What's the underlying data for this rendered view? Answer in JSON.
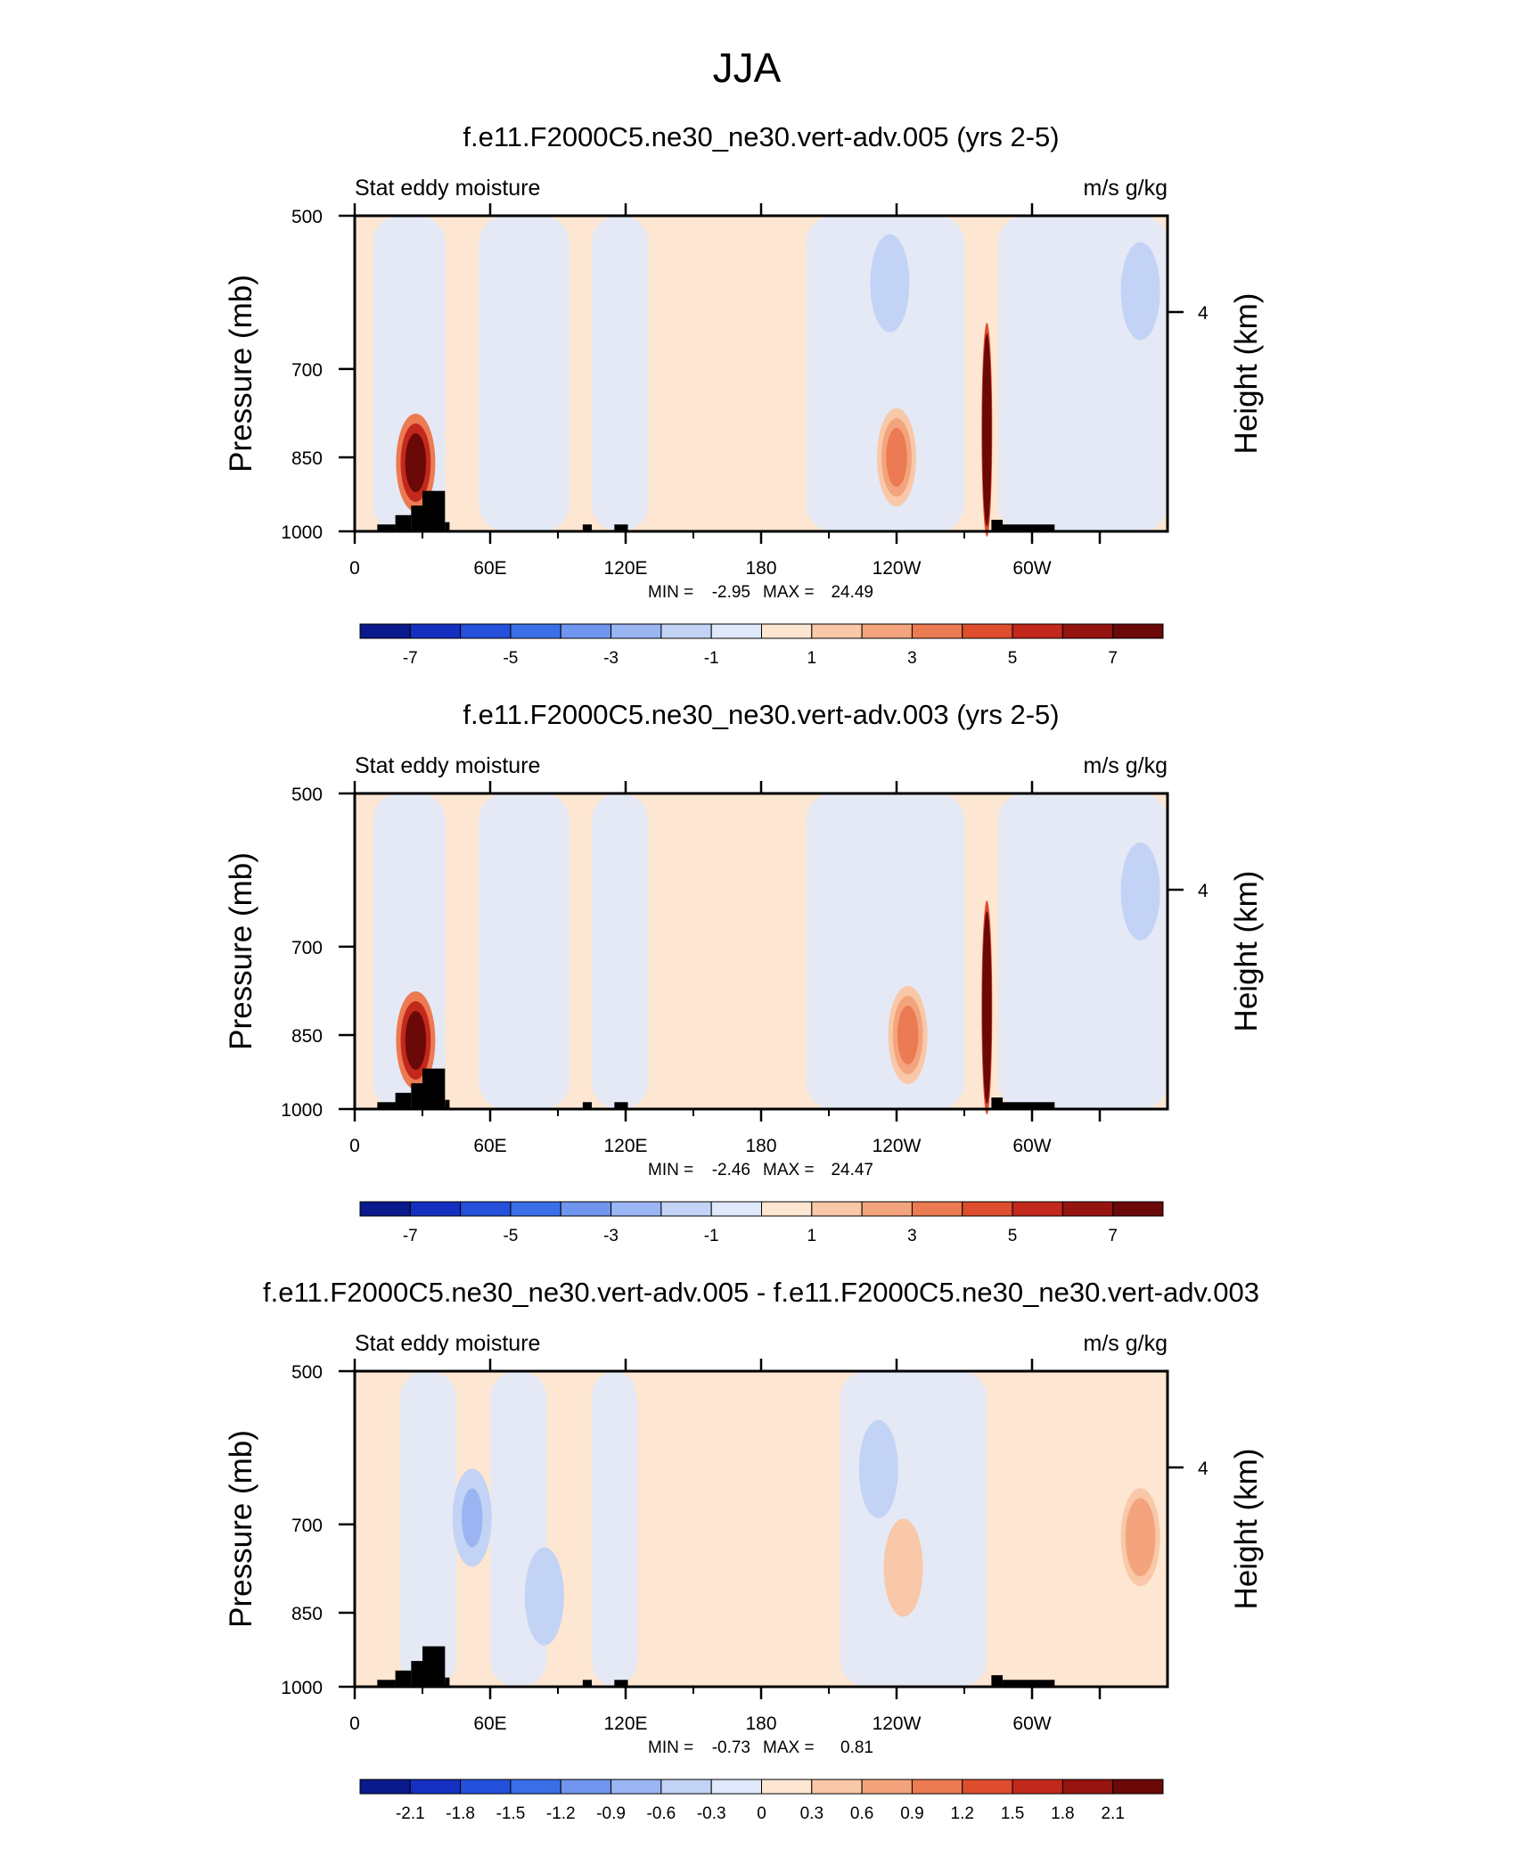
{
  "figure_title": "JJA",
  "colors": {
    "diverging": [
      "#0a1a8c",
      "#1530c0",
      "#2450dc",
      "#3a6fe8",
      "#6f95ee",
      "#9ab5f2",
      "#c3d3f6",
      "#dfe9fb",
      "#fde6d2",
      "#f8c8a8",
      "#f3a47c",
      "#ec7a52",
      "#de4d2e",
      "#c2281c",
      "#951410",
      "#6b0808"
    ],
    "frame": "#000000",
    "terrain": "#000000"
  },
  "chart_data": [
    {
      "type": "heatmap",
      "title": "f.e11.F2000C5.ne30_ne30.vert-adv.005 (yrs 2-5)",
      "left_label": "Stat eddy moisture",
      "right_label": "m/s g/kg",
      "ylabel": "Pressure (mb)",
      "y2label": "Height (km)",
      "y_ticks": [
        "500",
        "700",
        "850",
        "1000"
      ],
      "y_tick_values": [
        500,
        700,
        850,
        1000
      ],
      "y2_ticks": [
        "4"
      ],
      "x_ticks": [
        "0",
        "60E",
        "120E",
        "180",
        "120W",
        "60W"
      ],
      "x_tick_values": [
        0,
        60,
        120,
        180,
        240,
        300
      ],
      "xlim": [
        0,
        360
      ],
      "ylim": [
        1000,
        500
      ],
      "min_label": "MIN =",
      "min_value": "-2.95",
      "max_label": "MAX =",
      "max_value": "24.49",
      "colorbar_labels": [
        "-7",
        "-5",
        "-3",
        "-1",
        "1",
        "3",
        "5",
        "7"
      ],
      "features": [
        {
          "lon": 27,
          "p": 860,
          "value": 7
        },
        {
          "lon": 280,
          "p": 800,
          "value": 24
        },
        {
          "lon": 240,
          "p": 850,
          "value": 3
        },
        {
          "lon": 237,
          "p": 580,
          "value": -2
        },
        {
          "lon": 348,
          "p": 590,
          "value": -2
        }
      ]
    },
    {
      "type": "heatmap",
      "title": "f.e11.F2000C5.ne30_ne30.vert-adv.003 (yrs 2-5)",
      "left_label": "Stat eddy moisture",
      "right_label": "m/s g/kg",
      "ylabel": "Pressure (mb)",
      "y2label": "Height (km)",
      "y_ticks": [
        "500",
        "700",
        "850",
        "1000"
      ],
      "y_tick_values": [
        500,
        700,
        850,
        1000
      ],
      "y2_ticks": [
        "4"
      ],
      "x_ticks": [
        "0",
        "60E",
        "120E",
        "180",
        "120W",
        "60W"
      ],
      "x_tick_values": [
        0,
        60,
        120,
        180,
        240,
        300
      ],
      "xlim": [
        0,
        360
      ],
      "ylim": [
        1000,
        500
      ],
      "min_label": "MIN =",
      "min_value": "-2.46",
      "max_label": "MAX =",
      "max_value": "24.47",
      "colorbar_labels": [
        "-7",
        "-5",
        "-3",
        "-1",
        "1",
        "3",
        "5",
        "7"
      ],
      "features": [
        {
          "lon": 27,
          "p": 860,
          "value": 7
        },
        {
          "lon": 280,
          "p": 800,
          "value": 24
        },
        {
          "lon": 245,
          "p": 850,
          "value": 3
        },
        {
          "lon": 348,
          "p": 620,
          "value": -2
        }
      ]
    },
    {
      "type": "heatmap",
      "title": "f.e11.F2000C5.ne30_ne30.vert-adv.005 - f.e11.F2000C5.ne30_ne30.vert-adv.003",
      "left_label": "Stat eddy moisture",
      "right_label": "m/s g/kg",
      "ylabel": "Pressure (mb)",
      "y2label": "Height (km)",
      "y_ticks": [
        "500",
        "700",
        "850",
        "1000"
      ],
      "y_tick_values": [
        500,
        700,
        850,
        1000
      ],
      "y2_ticks": [
        "4"
      ],
      "x_ticks": [
        "0",
        "60E",
        "120E",
        "180",
        "120W",
        "60W"
      ],
      "x_tick_values": [
        0,
        60,
        120,
        180,
        240,
        300
      ],
      "xlim": [
        0,
        360
      ],
      "ylim": [
        1000,
        500
      ],
      "min_label": "MIN =",
      "min_value": "-0.73",
      "max_label": "MAX =",
      "max_value": "0.81",
      "colorbar_labels": [
        "-2.1",
        "-1.8",
        "-1.5",
        "-1.2",
        "-0.9",
        "-0.6",
        "-0.3",
        "0",
        "0.3",
        "0.6",
        "0.9",
        "1.2",
        "1.5",
        "1.8",
        "2.1"
      ],
      "features": [
        {
          "lon": 52,
          "p": 690,
          "value": -0.7
        },
        {
          "lon": 84,
          "p": 820,
          "value": -0.5
        },
        {
          "lon": 348,
          "p": 720,
          "value": 0.8
        },
        {
          "lon": 243,
          "p": 770,
          "value": 0.5
        },
        {
          "lon": 232,
          "p": 620,
          "value": -0.4
        }
      ]
    }
  ]
}
